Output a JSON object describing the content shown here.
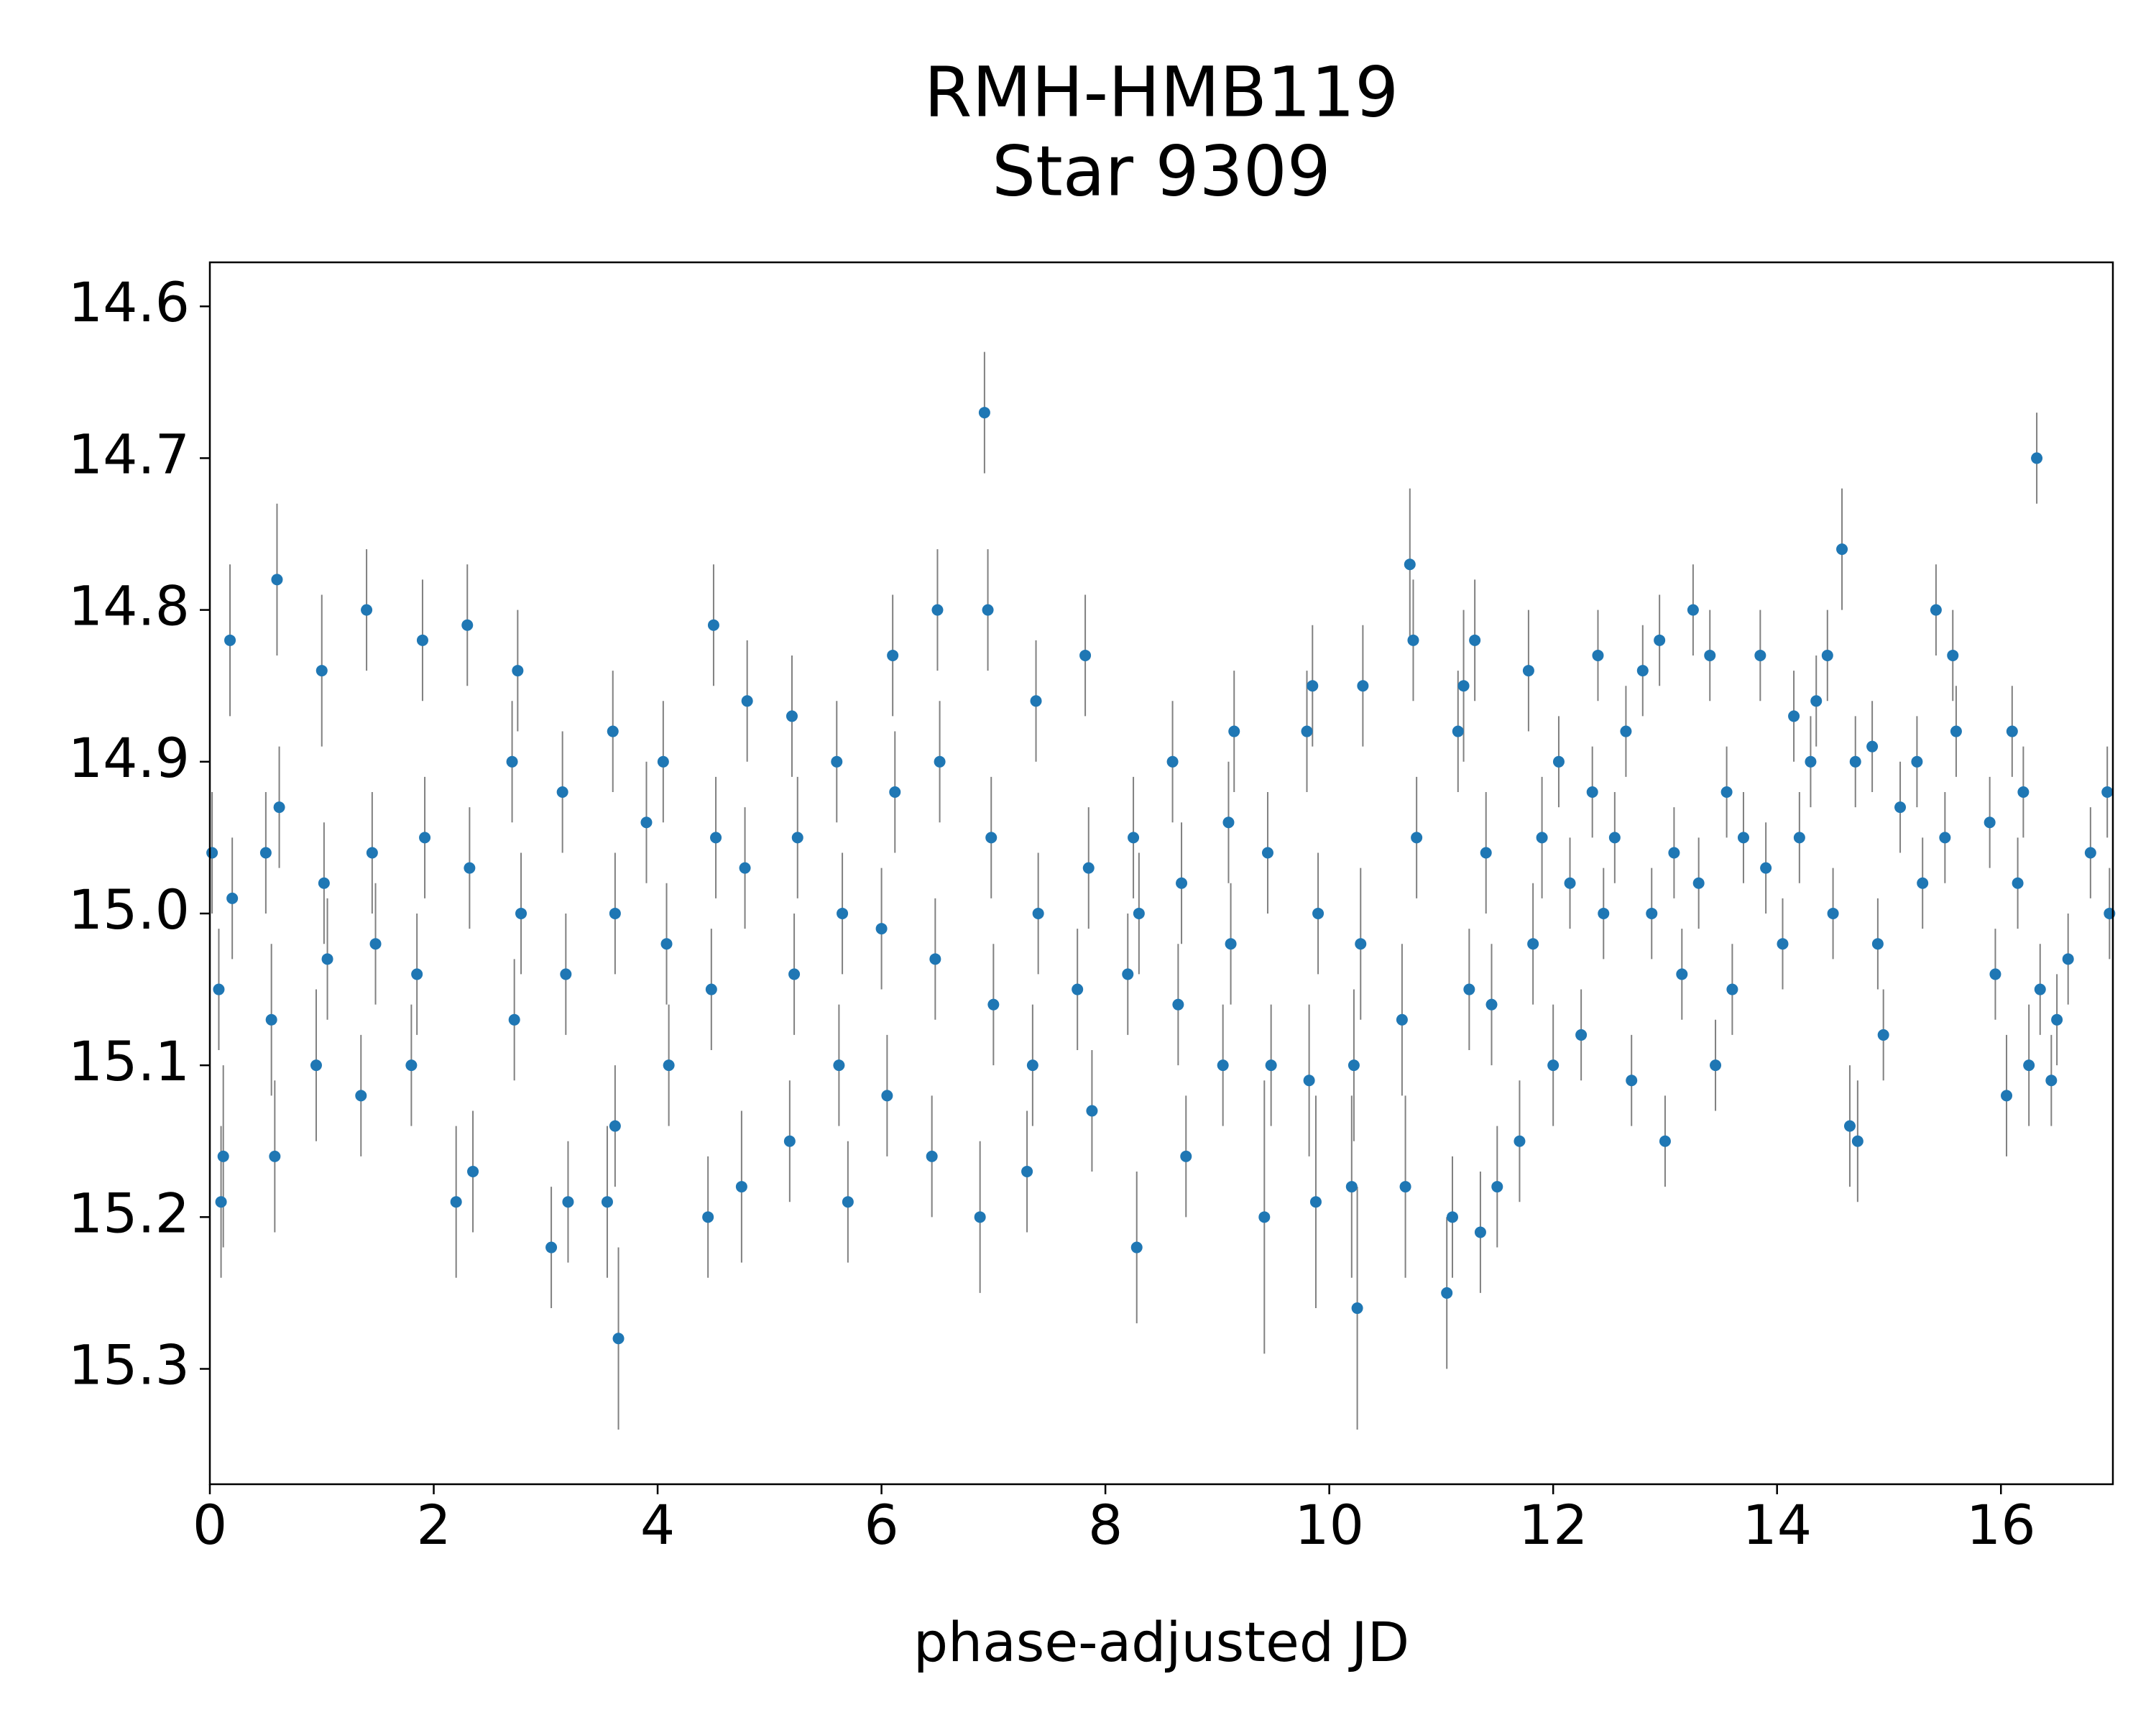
{
  "chart_data": {
    "type": "scatter",
    "title": "RMH-HMB119",
    "subtitle": "Star 9309",
    "xlabel": "phase-adjusted JD",
    "xlim": [
      0,
      17.0
    ],
    "ylim": [
      15.376,
      14.571
    ],
    "xticks": [
      0,
      2,
      4,
      6,
      8,
      10,
      12,
      14,
      16
    ],
    "yticks": [
      14.6,
      14.7,
      14.8,
      14.9,
      {
        "value": 15.0,
        "label": "15.0"
      },
      15.1,
      15.2,
      15.3
    ],
    "color": "#1f77b4",
    "errorbar_color": "#808080",
    "grid": false,
    "x": [
      0.02,
      0.08,
      0.12,
      0.18,
      0.2,
      0.1,
      0.5,
      0.55,
      0.6,
      0.62,
      0.58,
      0.95,
      1.0,
      1.02,
      1.05,
      1.4,
      1.45,
      1.48,
      1.35,
      1.85,
      1.9,
      1.92,
      1.8,
      2.2,
      2.3,
      2.32,
      2.35,
      2.7,
      2.75,
      2.78,
      2.72,
      3.05,
      3.15,
      3.18,
      3.2,
      3.55,
      3.6,
      3.62,
      3.65,
      3.62,
      3.9,
      4.05,
      4.08,
      4.1,
      4.45,
      4.5,
      4.52,
      4.48,
      4.75,
      4.8,
      4.78,
      5.2,
      5.25,
      5.22,
      5.18,
      5.6,
      5.65,
      5.7,
      5.62,
      6.05,
      6.1,
      6.12,
      6.0,
      6.45,
      6.5,
      6.52,
      6.48,
      6.88,
      6.92,
      6.95,
      6.98,
      7.0,
      7.3,
      7.38,
      7.4,
      7.35,
      7.75,
      7.82,
      7.85,
      7.88,
      8.2,
      8.25,
      8.28,
      8.3,
      8.6,
      8.68,
      8.72,
      8.65,
      9.05,
      9.1,
      9.15,
      9.12,
      9.42,
      9.45,
      9.48,
      9.8,
      9.85,
      9.88,
      9.82,
      9.9,
      10.2,
      10.25,
      10.3,
      10.28,
      10.22,
      10.65,
      10.72,
      10.75,
      10.78,
      10.68,
      11.05,
      11.1,
      11.15,
      11.2,
      11.25,
      11.3,
      11.35,
      11.4,
      11.45,
      11.5,
      11.7,
      11.78,
      11.82,
      11.9,
      12.0,
      12.05,
      12.15,
      12.25,
      12.35,
      12.4,
      12.45,
      12.55,
      12.65,
      12.7,
      12.8,
      12.88,
      12.95,
      13.0,
      13.08,
      13.15,
      13.25,
      13.3,
      13.4,
      13.45,
      13.55,
      13.6,
      13.7,
      13.85,
      13.9,
      14.05,
      14.15,
      14.2,
      14.3,
      14.35,
      14.45,
      14.5,
      14.58,
      14.65,
      14.72,
      14.7,
      14.85,
      14.9,
      14.95,
      15.1,
      15.25,
      15.3,
      15.42,
      15.5,
      15.57,
      15.6,
      15.9,
      15.95,
      16.05,
      16.1,
      16.15,
      16.2,
      16.25,
      16.32,
      16.35,
      16.45,
      16.5,
      16.6,
      16.8,
      16.95,
      16.97
    ],
    "values": [
      14.96,
      15.05,
      15.16,
      14.82,
      14.99,
      15.19,
      14.96,
      15.07,
      14.78,
      14.93,
      15.16,
      15.1,
      14.84,
      14.98,
      15.03,
      14.8,
      14.96,
      15.02,
      15.12,
      15.04,
      14.82,
      14.95,
      15.1,
      15.19,
      14.81,
      14.97,
      15.17,
      14.9,
      14.84,
      15.0,
      15.07,
      15.22,
      14.92,
      15.04,
      15.19,
      15.19,
      14.88,
      15.0,
      15.28,
      15.14,
      14.94,
      14.9,
      15.02,
      15.1,
      15.2,
      14.81,
      14.95,
      15.05,
      15.18,
      14.86,
      14.97,
      14.87,
      14.95,
      15.04,
      15.15,
      14.9,
      15.0,
      15.19,
      15.1,
      15.12,
      14.83,
      14.92,
      15.01,
      15.16,
      14.8,
      14.9,
      15.03,
      15.2,
      14.67,
      14.8,
      14.95,
      15.06,
      15.17,
      14.86,
      15.0,
      15.1,
      15.05,
      14.83,
      14.97,
      15.13,
      15.04,
      14.95,
      15.22,
      15.0,
      14.9,
      14.98,
      15.16,
      15.06,
      15.1,
      14.94,
      14.88,
      15.02,
      15.2,
      14.96,
      15.1,
      14.88,
      14.85,
      15.19,
      15.11,
      15.0,
      15.18,
      15.26,
      14.85,
      15.02,
      15.1,
      15.07,
      14.77,
      14.82,
      14.95,
      15.18,
      15.25,
      15.2,
      14.88,
      14.85,
      15.05,
      14.82,
      15.21,
      14.96,
      15.06,
      15.18,
      15.15,
      14.84,
      15.02,
      14.95,
      15.1,
      14.9,
      14.98,
      15.08,
      14.92,
      14.83,
      15.0,
      14.95,
      14.88,
      15.11,
      14.84,
      15.0,
      14.82,
      15.15,
      14.96,
      15.04,
      14.8,
      14.98,
      14.83,
      15.1,
      14.92,
      15.05,
      14.95,
      14.83,
      14.97,
      15.02,
      14.87,
      14.95,
      14.9,
      14.86,
      14.83,
      15.0,
      14.76,
      15.14,
      15.15,
      14.9,
      14.89,
      15.02,
      15.08,
      14.93,
      14.9,
      14.98,
      14.8,
      14.95,
      14.83,
      14.88,
      14.94,
      15.04,
      15.12,
      14.88,
      14.98,
      14.92,
      15.1,
      14.7,
      15.05,
      15.11,
      15.07,
      15.03,
      14.96,
      14.92,
      15.0
    ],
    "errors": [
      0.04,
      0.04,
      0.06,
      0.05,
      0.04,
      0.05,
      0.04,
      0.05,
      0.05,
      0.04,
      0.05,
      0.05,
      0.05,
      0.04,
      0.04,
      0.04,
      0.04,
      0.04,
      0.04,
      0.04,
      0.04,
      0.04,
      0.04,
      0.05,
      0.04,
      0.04,
      0.04,
      0.04,
      0.04,
      0.04,
      0.04,
      0.04,
      0.04,
      0.04,
      0.04,
      0.05,
      0.04,
      0.04,
      0.06,
      0.04,
      0.04,
      0.04,
      0.04,
      0.04,
      0.04,
      0.04,
      0.04,
      0.04,
      0.05,
      0.04,
      0.04,
      0.04,
      0.04,
      0.04,
      0.04,
      0.04,
      0.04,
      0.04,
      0.04,
      0.04,
      0.04,
      0.04,
      0.04,
      0.04,
      0.04,
      0.04,
      0.04,
      0.05,
      0.04,
      0.04,
      0.04,
      0.04,
      0.04,
      0.04,
      0.04,
      0.04,
      0.04,
      0.04,
      0.04,
      0.04,
      0.04,
      0.04,
      0.05,
      0.04,
      0.04,
      0.04,
      0.04,
      0.04,
      0.04,
      0.04,
      0.04,
      0.04,
      0.09,
      0.04,
      0.04,
      0.04,
      0.04,
      0.07,
      0.05,
      0.04,
      0.06,
      0.08,
      0.04,
      0.05,
      0.05,
      0.05,
      0.05,
      0.04,
      0.04,
      0.06,
      0.05,
      0.04,
      0.04,
      0.05,
      0.04,
      0.04,
      0.04,
      0.04,
      0.04,
      0.04,
      0.04,
      0.04,
      0.04,
      0.04,
      0.04,
      0.03,
      0.03,
      0.03,
      0.03,
      0.03,
      0.03,
      0.03,
      0.03,
      0.03,
      0.03,
      0.03,
      0.03,
      0.03,
      0.03,
      0.03,
      0.03,
      0.03,
      0.03,
      0.03,
      0.03,
      0.03,
      0.03,
      0.03,
      0.03,
      0.03,
      0.03,
      0.03,
      0.03,
      0.03,
      0.03,
      0.03,
      0.04,
      0.04,
      0.04,
      0.03,
      0.03,
      0.03,
      0.03,
      0.03,
      0.03,
      0.03,
      0.03,
      0.03,
      0.03,
      0.03,
      0.03,
      0.03,
      0.04,
      0.03,
      0.03,
      0.03,
      0.04,
      0.03,
      0.03,
      0.03,
      0.03,
      0.03,
      0.03,
      0.03,
      0.03
    ]
  }
}
